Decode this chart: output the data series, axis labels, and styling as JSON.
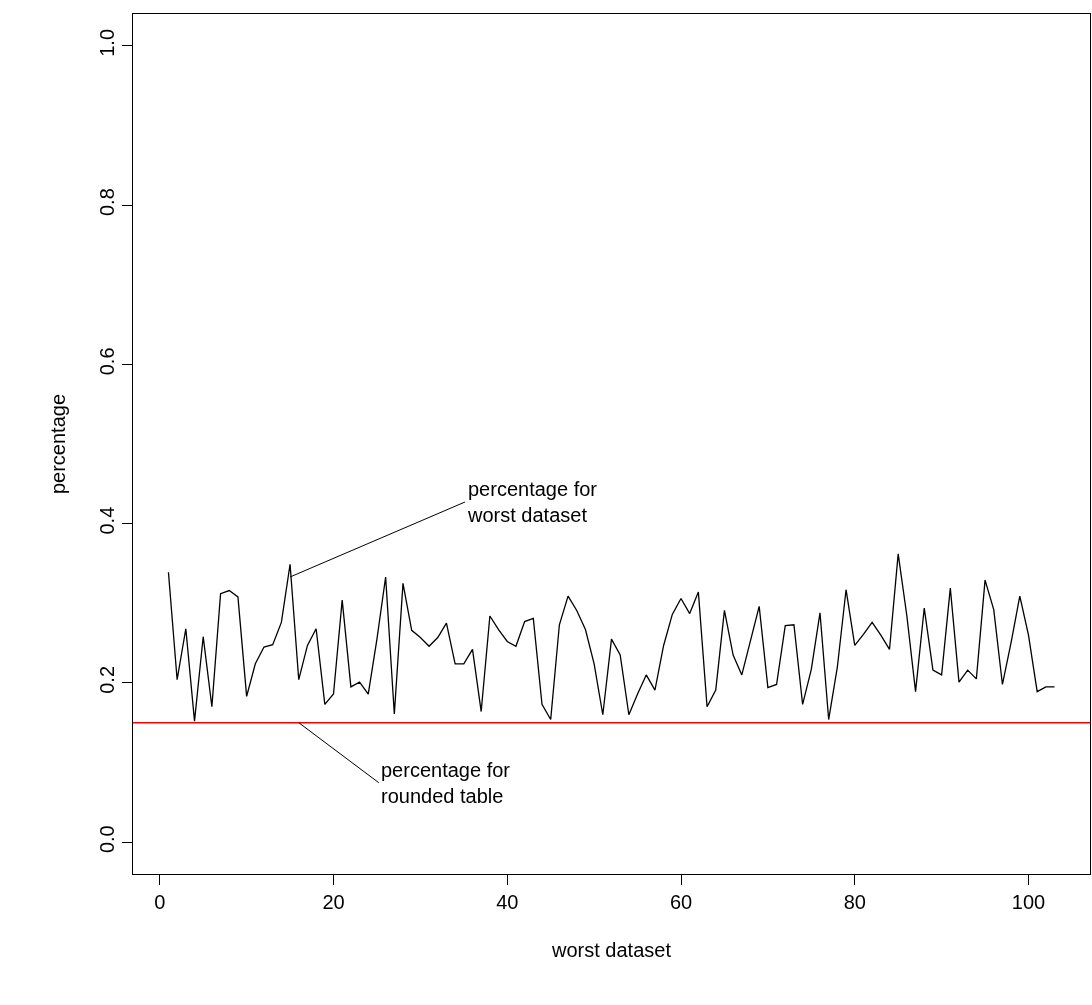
{
  "chart_data": {
    "type": "line",
    "xlabel": "worst dataset",
    "ylabel": "percentage",
    "x": [
      1,
      2,
      3,
      4,
      5,
      6,
      7,
      8,
      9,
      10,
      11,
      12,
      13,
      14,
      15,
      16,
      17,
      18,
      19,
      20,
      21,
      22,
      23,
      24,
      25,
      26,
      27,
      28,
      29,
      30,
      31,
      32,
      33,
      34,
      35,
      36,
      37,
      38,
      39,
      40,
      41,
      42,
      43,
      44,
      45,
      46,
      47,
      48,
      49,
      50,
      51,
      52,
      53,
      54,
      55,
      56,
      57,
      58,
      59,
      60,
      61,
      62,
      63,
      64,
      65,
      66,
      67,
      68,
      69,
      70,
      71,
      72,
      73,
      74,
      75,
      76,
      77,
      78,
      79,
      80,
      81,
      82,
      83,
      84,
      85,
      86,
      87,
      88,
      89,
      90,
      91,
      92,
      93,
      94,
      95,
      96,
      97,
      98,
      99,
      100,
      101,
      102,
      103
    ],
    "series": [
      {
        "color": "#000000",
        "values": [
          0.339,
          0.204,
          0.268,
          0.152,
          0.258,
          0.17,
          0.312,
          0.316,
          0.308,
          0.183,
          0.224,
          0.245,
          0.248,
          0.276,
          0.349,
          0.204,
          0.247,
          0.268,
          0.173,
          0.186,
          0.304,
          0.195,
          0.201,
          0.186,
          0.255,
          0.333,
          0.161,
          0.325,
          0.266,
          0.257,
          0.246,
          0.257,
          0.275,
          0.224,
          0.224,
          0.242,
          0.164,
          0.284,
          0.267,
          0.252,
          0.246,
          0.277,
          0.281,
          0.173,
          0.154,
          0.273,
          0.309,
          0.291,
          0.267,
          0.224,
          0.16,
          0.255,
          0.235,
          0.16,
          0.186,
          0.21,
          0.191,
          0.247,
          0.286,
          0.306,
          0.287,
          0.314,
          0.17,
          0.191,
          0.291,
          0.235,
          0.21,
          0.253,
          0.296,
          0.194,
          0.198,
          0.272,
          0.273,
          0.173,
          0.217,
          0.288,
          0.154,
          0.22,
          0.317,
          0.247,
          0.261,
          0.276,
          0.26,
          0.242,
          0.362,
          0.284,
          0.189,
          0.294,
          0.216,
          0.21,
          0.319,
          0.201,
          0.216,
          0.205,
          0.329,
          0.292,
          0.198,
          0.251,
          0.309,
          0.26,
          0.189,
          0.195,
          0.195
        ]
      }
    ],
    "ref_lines": [
      {
        "axis": "y",
        "value": 0.15,
        "color": "#ff0000"
      }
    ],
    "annotations": [
      {
        "text": "percentage for\nworst dataset",
        "x": 15,
        "y": 0.333
      },
      {
        "text": "percentage for\nrounded table",
        "x": 16,
        "y": 0.15
      }
    ],
    "xlim": [
      -3.08,
      107.08
    ],
    "ylim": [
      -0.04,
      1.04
    ],
    "xticks": [
      0,
      20,
      40,
      60,
      80,
      100
    ],
    "yticks": [
      {
        "value": 0,
        "label": "0.0"
      },
      {
        "value": 0.2,
        "label": "0.2"
      },
      {
        "value": 0.4,
        "label": "0.4"
      },
      {
        "value": 0.6,
        "label": "0.6"
      },
      {
        "value": 0.8,
        "label": "0.8"
      },
      {
        "value": 1,
        "label": "1.0"
      }
    ],
    "marker": "none",
    "line_style": "solid"
  }
}
